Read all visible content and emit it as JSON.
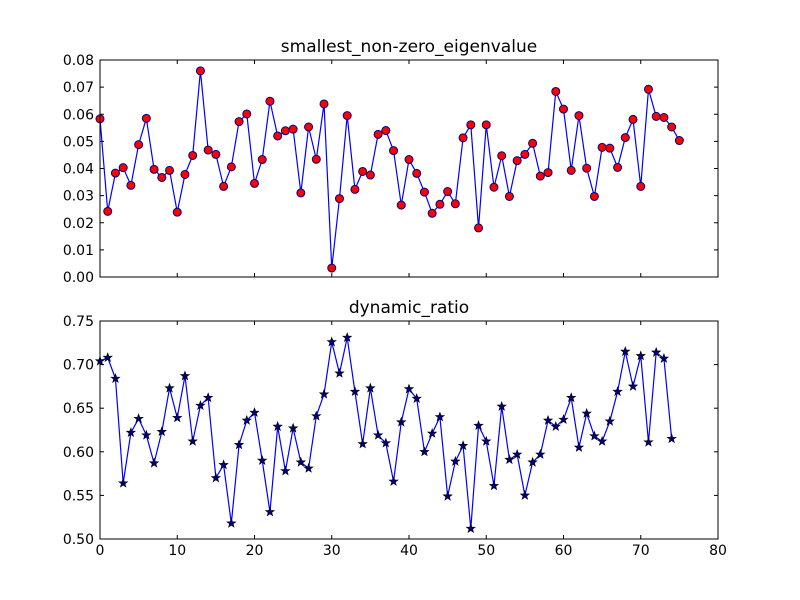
{
  "colors": {
    "background": "#ffffff",
    "line": "#0000ff",
    "marker_fill_top": "#ff0000",
    "marker_edge_top": "#000080",
    "marker_fill_bottom": "#000080"
  },
  "chart_data": [
    {
      "type": "line",
      "title": "smallest_non-zero_eigenvalue",
      "xlabel": "",
      "ylabel": "",
      "xlim": [
        0,
        80
      ],
      "ylim": [
        0.0,
        0.08
      ],
      "x_ticks": [
        0,
        10,
        20,
        30,
        40,
        50,
        60,
        70,
        80
      ],
      "x_tick_labels_visible": false,
      "y_ticks": [
        0.0,
        0.01,
        0.02,
        0.03,
        0.04,
        0.05,
        0.06,
        0.07,
        0.08
      ],
      "y_tick_labels": [
        "0.00",
        "0.01",
        "0.02",
        "0.03",
        "0.04",
        "0.05",
        "0.06",
        "0.07",
        "0.08"
      ],
      "marker": "circle",
      "grid": false,
      "series": [
        {
          "values": [
            0.0583,
            0.0242,
            0.0383,
            0.0403,
            0.0338,
            0.0488,
            0.0585,
            0.0397,
            0.0367,
            0.0393,
            0.0239,
            0.0378,
            0.0448,
            0.076,
            0.0468,
            0.0452,
            0.0334,
            0.0406,
            0.0573,
            0.0601,
            0.0345,
            0.0433,
            0.0648,
            0.052,
            0.0539,
            0.0545,
            0.031,
            0.0553,
            0.0434,
            0.0638,
            0.0033,
            0.0289,
            0.0595,
            0.0323,
            0.0389,
            0.0376,
            0.0526,
            0.054,
            0.0466,
            0.0265,
            0.0433,
            0.0382,
            0.0313,
            0.0235,
            0.0268,
            0.0315,
            0.027,
            0.0513,
            0.0561,
            0.0181,
            0.0561,
            0.0331,
            0.0447,
            0.0297,
            0.0429,
            0.0452,
            0.0493,
            0.0372,
            0.0385,
            0.0684,
            0.0619,
            0.0393,
            0.0595,
            0.0401,
            0.0297,
            0.0478,
            0.0475,
            0.0404,
            0.0514,
            0.0581,
            0.0334,
            0.0692,
            0.0592,
            0.0588,
            0.0553,
            0.0503
          ]
        }
      ]
    },
    {
      "type": "line",
      "title": "dynamic_ratio",
      "xlabel": "",
      "ylabel": "",
      "xlim": [
        0,
        80
      ],
      "ylim": [
        0.5,
        0.75
      ],
      "x_ticks": [
        0,
        10,
        20,
        30,
        40,
        50,
        60,
        70,
        80
      ],
      "x_tick_labels": [
        "0",
        "10",
        "20",
        "30",
        "40",
        "50",
        "60",
        "70",
        "80"
      ],
      "y_ticks": [
        0.5,
        0.55,
        0.6,
        0.65,
        0.7,
        0.75
      ],
      "y_tick_labels": [
        "0.50",
        "0.55",
        "0.60",
        "0.65",
        "0.70",
        "0.75"
      ],
      "marker": "star",
      "grid": false,
      "series": [
        {
          "values": [
            0.704,
            0.708,
            0.684,
            0.564,
            0.622,
            0.638,
            0.619,
            0.587,
            0.623,
            0.673,
            0.639,
            0.687,
            0.612,
            0.653,
            0.662,
            0.57,
            0.585,
            0.518,
            0.608,
            0.636,
            0.645,
            0.59,
            0.531,
            0.629,
            0.578,
            0.627,
            0.588,
            0.581,
            0.641,
            0.666,
            0.726,
            0.69,
            0.731,
            0.669,
            0.609,
            0.673,
            0.619,
            0.61,
            0.566,
            0.634,
            0.672,
            0.661,
            0.6,
            0.621,
            0.64,
            0.549,
            0.589,
            0.607,
            0.512,
            0.63,
            0.612,
            0.561,
            0.652,
            0.591,
            0.597,
            0.55,
            0.588,
            0.597,
            0.636,
            0.629,
            0.637,
            0.662,
            0.605,
            0.644,
            0.618,
            0.612,
            0.635,
            0.669,
            0.715,
            0.675,
            0.71,
            0.611,
            0.714,
            0.707,
            0.615
          ]
        }
      ]
    }
  ]
}
